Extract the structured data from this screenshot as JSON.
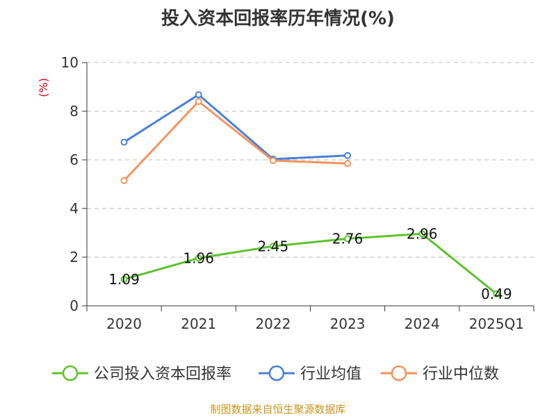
{
  "chart_data": {
    "type": "line",
    "title": "投入资本回报率历年情况(%)",
    "ylabel": "(%)",
    "xlabel": "",
    "categories": [
      "2020",
      "2021",
      "2022",
      "2023",
      "2024",
      "2025Q1"
    ],
    "ylim": [
      0,
      10
    ],
    "yticks": [
      0,
      2,
      4,
      6,
      8,
      10
    ],
    "grid": true,
    "legend_position": "bottom",
    "series": [
      {
        "name": "公司投入资本回报率",
        "color": "#5cc22d",
        "values": [
          1.09,
          1.96,
          2.45,
          2.76,
          2.96,
          0.49
        ],
        "labels": [
          "1.09",
          "1.96",
          "2.45",
          "2.76",
          "2.96",
          "0.49"
        ],
        "show_labels": true
      },
      {
        "name": "行业均值",
        "color": "#4a7fdc",
        "values": [
          6.73,
          8.68,
          6.03,
          6.18,
          null,
          null
        ],
        "show_labels": false
      },
      {
        "name": "行业中位数",
        "color": "#f7925a",
        "values": [
          5.15,
          8.4,
          5.97,
          5.85,
          null,
          null
        ],
        "show_labels": false
      }
    ]
  },
  "source_note": "制图数据来自恒生聚源数据库"
}
